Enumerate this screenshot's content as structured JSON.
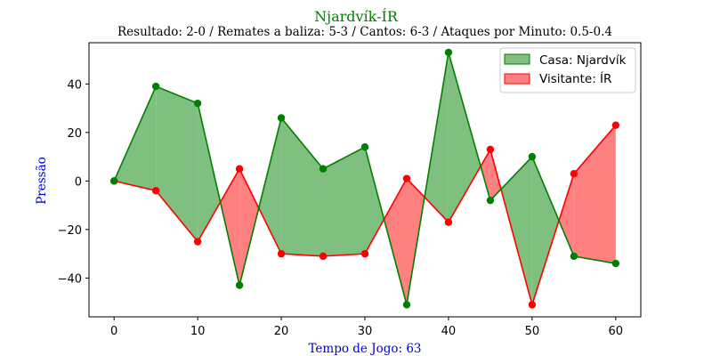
{
  "chart_data": {
    "type": "area",
    "title": "Njardvík-ÍR",
    "subtitle": "Resultado: 2-0 / Remates a baliza: 5-3 / Cantos: 6-3 / Ataques por Minuto: 0.5-0.4",
    "xlabel": "Tempo de Jogo: 63",
    "ylabel": "Pressão",
    "xlim": [
      -3,
      63
    ],
    "ylim": [
      -56,
      57
    ],
    "x": [
      0,
      5,
      10,
      15,
      20,
      25,
      30,
      35,
      40,
      45,
      50,
      55,
      60
    ],
    "xticks": [
      0,
      10,
      20,
      30,
      40,
      50,
      60
    ],
    "yticks": [
      -40,
      -20,
      0,
      20,
      40
    ],
    "ytick_labels": [
      "−40",
      "−20",
      "0",
      "20",
      "40"
    ],
    "series": [
      {
        "name": "Casa: Njardvík",
        "values": [
          0,
          39,
          32,
          -43,
          26,
          5,
          14,
          -51,
          53,
          -8,
          10,
          -31,
          -34
        ]
      },
      {
        "name": "Visitante: ÍR",
        "values": [
          0,
          -4,
          -25,
          5,
          -30,
          -31,
          -30,
          1,
          -17,
          13,
          -51,
          3,
          23
        ]
      }
    ],
    "legend": "top-right",
    "grid": false,
    "colors": {
      "home_line": "#008000",
      "home_fill": "#7fbf7f",
      "away_line": "#ff0000",
      "away_fill": "#ff8080",
      "title": "#008000",
      "axis_label": "#0000cd"
    }
  }
}
